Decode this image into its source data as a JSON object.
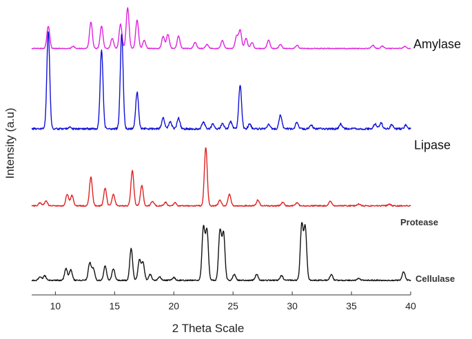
{
  "chart_data": {
    "type": "line",
    "title": "",
    "xlabel": "2 Theta Scale",
    "ylabel": "Intensity (a.u)",
    "xlim": [
      8,
      40
    ],
    "xticks": [
      10,
      15,
      20,
      25,
      30,
      35,
      40
    ],
    "grid": false,
    "legend": "none",
    "series": [
      {
        "name": "Amylase",
        "color": "#e020e0",
        "baseline_fraction": 0.84,
        "scale": 0.14,
        "peaks": [
          [
            9.4,
            0.55
          ],
          [
            11.5,
            0.05
          ],
          [
            13.0,
            0.65
          ],
          [
            13.9,
            0.55
          ],
          [
            14.8,
            0.25
          ],
          [
            15.5,
            0.6
          ],
          [
            16.1,
            1.0
          ],
          [
            16.9,
            0.7
          ],
          [
            17.5,
            0.2
          ],
          [
            19.1,
            0.3
          ],
          [
            19.5,
            0.35
          ],
          [
            20.4,
            0.3
          ],
          [
            21.8,
            0.15
          ],
          [
            22.8,
            0.1
          ],
          [
            24.1,
            0.2
          ],
          [
            25.3,
            0.3
          ],
          [
            25.6,
            0.45
          ],
          [
            26.1,
            0.25
          ],
          [
            26.6,
            0.15
          ],
          [
            28.0,
            0.2
          ],
          [
            29.0,
            0.1
          ],
          [
            30.4,
            0.08
          ],
          [
            36.8,
            0.08
          ],
          [
            37.6,
            0.06
          ],
          [
            39.5,
            0.05
          ]
        ]
      },
      {
        "name": "Lipase",
        "color": "#1010d8",
        "baseline_fraction": 0.56,
        "scale": 0.34,
        "peaks": [
          [
            9.4,
            0.98
          ],
          [
            11.2,
            0.02
          ],
          [
            13.9,
            0.8
          ],
          [
            15.6,
            0.96
          ],
          [
            16.9,
            0.37
          ],
          [
            19.1,
            0.11
          ],
          [
            19.7,
            0.07
          ],
          [
            20.4,
            0.11
          ],
          [
            22.5,
            0.07
          ],
          [
            23.3,
            0.05
          ],
          [
            24.1,
            0.05
          ],
          [
            24.8,
            0.07
          ],
          [
            25.6,
            0.44
          ],
          [
            26.4,
            0.05
          ],
          [
            28.0,
            0.04
          ],
          [
            29.0,
            0.14
          ],
          [
            30.4,
            0.07
          ],
          [
            31.6,
            0.04
          ],
          [
            34.1,
            0.05
          ],
          [
            37.0,
            0.05
          ],
          [
            37.5,
            0.06
          ],
          [
            38.4,
            0.04
          ],
          [
            39.6,
            0.04
          ]
        ]
      },
      {
        "name": "Protease",
        "color": "#e02020",
        "baseline_fraction": 0.3,
        "scale": 0.2,
        "peaks": [
          [
            8.7,
            0.05
          ],
          [
            9.2,
            0.08
          ],
          [
            11.0,
            0.2
          ],
          [
            11.4,
            0.18
          ],
          [
            13.0,
            0.5
          ],
          [
            14.2,
            0.3
          ],
          [
            14.9,
            0.2
          ],
          [
            16.5,
            0.6
          ],
          [
            17.3,
            0.35
          ],
          [
            18.2,
            0.08
          ],
          [
            19.3,
            0.06
          ],
          [
            20.1,
            0.05
          ],
          [
            22.7,
            1.0
          ],
          [
            23.9,
            0.1
          ],
          [
            24.7,
            0.2
          ],
          [
            27.1,
            0.1
          ],
          [
            29.2,
            0.06
          ],
          [
            30.4,
            0.05
          ],
          [
            33.2,
            0.08
          ],
          [
            35.6,
            0.03
          ],
          [
            38.2,
            0.03
          ]
        ]
      },
      {
        "name": "Cellulase",
        "color": "#111111",
        "baseline_fraction": 0.045,
        "scale": 0.2,
        "peaks": [
          [
            8.7,
            0.06
          ],
          [
            9.1,
            0.08
          ],
          [
            10.9,
            0.2
          ],
          [
            11.3,
            0.18
          ],
          [
            12.9,
            0.3
          ],
          [
            13.2,
            0.2
          ],
          [
            14.2,
            0.25
          ],
          [
            14.9,
            0.2
          ],
          [
            16.4,
            0.55
          ],
          [
            17.1,
            0.35
          ],
          [
            17.4,
            0.3
          ],
          [
            18.0,
            0.1
          ],
          [
            18.8,
            0.06
          ],
          [
            20.0,
            0.05
          ],
          [
            22.5,
            0.9
          ],
          [
            22.8,
            0.85
          ],
          [
            23.9,
            0.85
          ],
          [
            24.2,
            0.8
          ],
          [
            25.1,
            0.1
          ],
          [
            27.0,
            0.1
          ],
          [
            29.1,
            0.08
          ],
          [
            30.8,
            0.95
          ],
          [
            31.1,
            0.9
          ],
          [
            33.3,
            0.1
          ],
          [
            35.6,
            0.03
          ],
          [
            39.4,
            0.15
          ]
        ]
      }
    ]
  }
}
